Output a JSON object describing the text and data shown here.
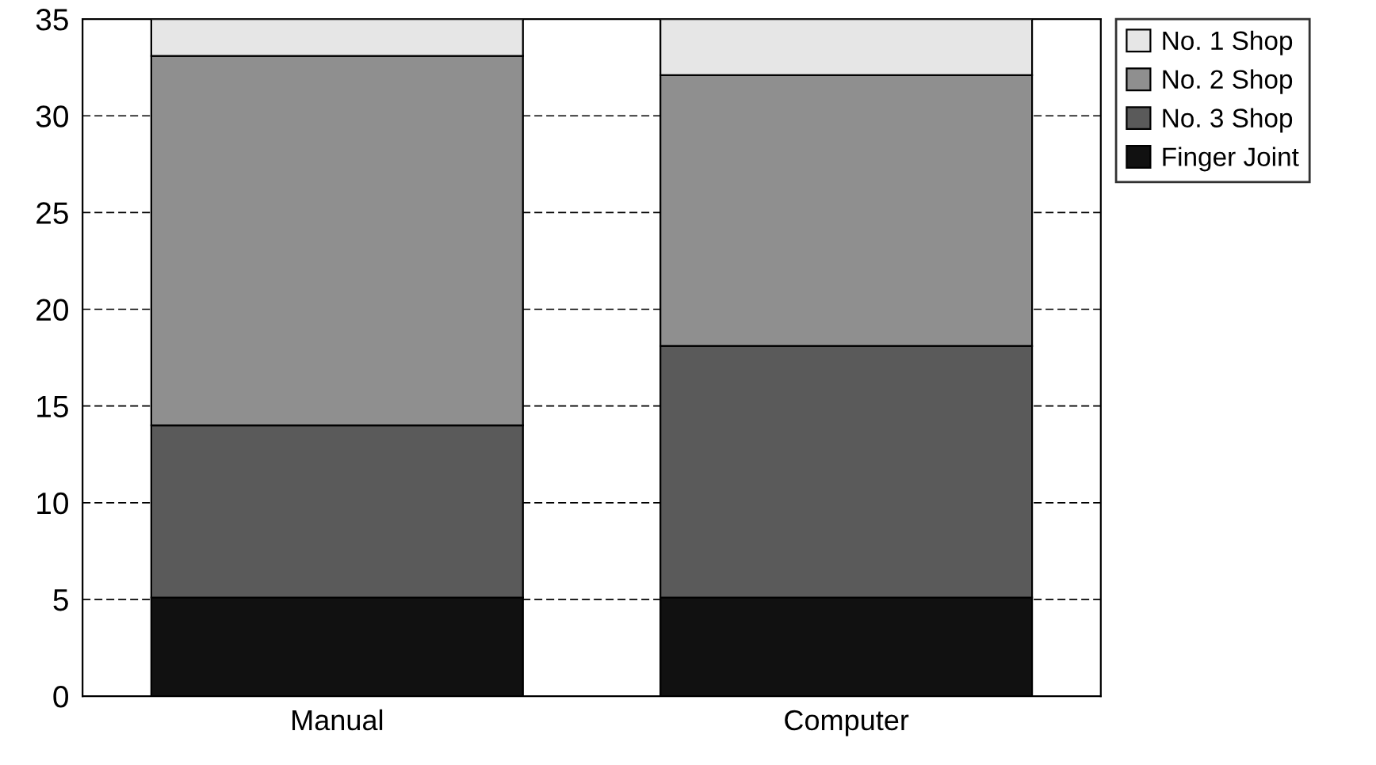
{
  "chart_data": {
    "type": "bar",
    "stacked": true,
    "categories": [
      "Manual",
      "Computer"
    ],
    "series": [
      {
        "name": "Finger Joint",
        "color": "#111111",
        "values": [
          5.1,
          5.1
        ]
      },
      {
        "name": "No. 3 Shop",
        "color": "#5a5a5a",
        "values": [
          8.9,
          13.0
        ]
      },
      {
        "name": "No. 2 Shop",
        "color": "#8f8f8f",
        "values": [
          19.1,
          14.0
        ]
      },
      {
        "name": "No. 1 Shop",
        "color": "#e6e6e6",
        "values": [
          1.9,
          2.9
        ]
      }
    ],
    "ylim": [
      0,
      35
    ],
    "yticks": [
      0,
      5,
      10,
      15,
      20,
      25,
      30,
      35
    ],
    "grid": "y",
    "legend": "top right"
  }
}
